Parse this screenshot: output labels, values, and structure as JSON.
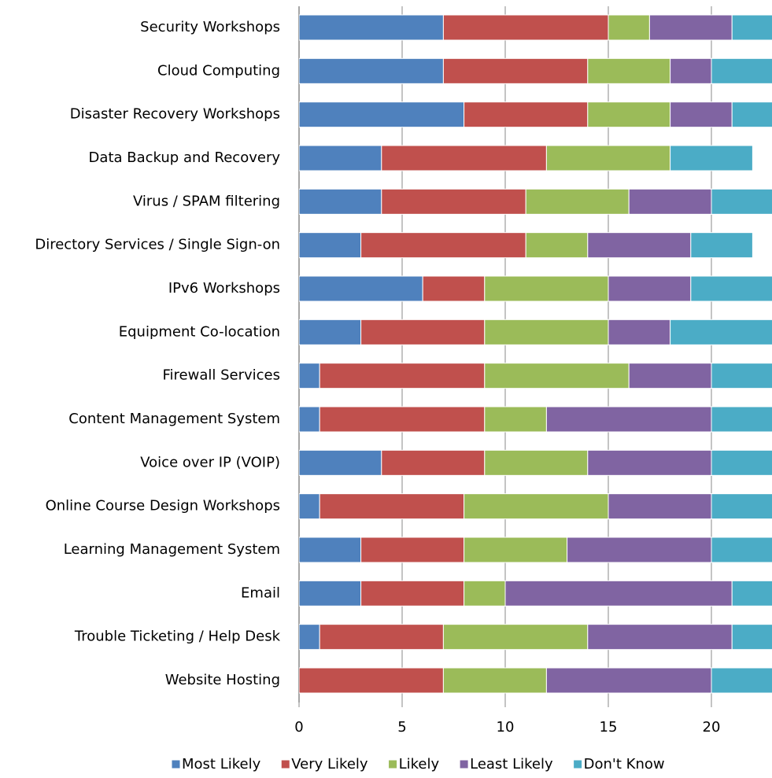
{
  "chart_data": {
    "type": "stacked-bar-horizontal",
    "categories": [
      "Security Workshops",
      "Cloud Computing",
      "Disaster Recovery Workshops",
      "Data Backup and Recovery",
      "Virus / SPAM filtering",
      "Directory Services / Single Sign-on",
      "IPv6 Workshops",
      "Equipment Co-location",
      "Firewall Services",
      "Content Management System",
      "Voice over IP (VOIP)",
      "Online Course Design Workshops",
      "Learning Management System",
      "Email",
      "Trouble Ticketing / Help Desk",
      "Website Hosting"
    ],
    "series": [
      {
        "name": "Most Likely",
        "color": "#4f81bd",
        "values": [
          7,
          7,
          8,
          4,
          4,
          3,
          6,
          3,
          1,
          1,
          4,
          1,
          3,
          3,
          1,
          0
        ]
      },
      {
        "name": "Very Likely",
        "color": "#c0504d",
        "values": [
          8,
          7,
          6,
          8,
          7,
          8,
          3,
          6,
          8,
          8,
          5,
          7,
          5,
          5,
          6,
          7
        ]
      },
      {
        "name": "Likely",
        "color": "#9bbb59",
        "values": [
          2,
          4,
          4,
          6,
          5,
          3,
          6,
          6,
          7,
          3,
          5,
          7,
          5,
          2,
          7,
          5
        ]
      },
      {
        "name": "Least Likely",
        "color": "#8064a2",
        "values": [
          4,
          2,
          3,
          0,
          4,
          5,
          4,
          3,
          4,
          8,
          6,
          5,
          7,
          11,
          7,
          8
        ]
      },
      {
        "name": "Don't Know",
        "color": "#4bacc6",
        "values": [
          3,
          4,
          3,
          4,
          4,
          3,
          5,
          6,
          4,
          4,
          4,
          4,
          4,
          3,
          3,
          4
        ]
      }
    ],
    "xlim": [
      0,
      23
    ],
    "xticks": [
      0,
      5,
      10,
      15,
      20
    ],
    "grid": true,
    "legend": "bottom"
  }
}
